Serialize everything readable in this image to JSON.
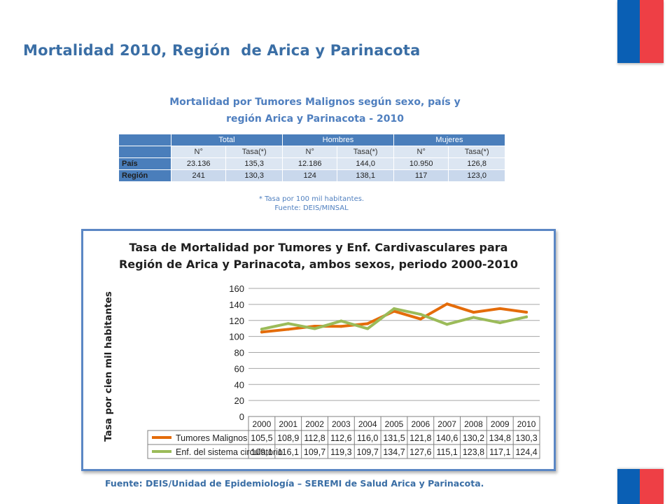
{
  "slide": {
    "title": "Mortalidad 2010, Región  de Arica y Parinacota",
    "footer_source": "Fuente: DEIS/Unidad de Epidemiología – SEREMI de Salud Arica y Parinacota."
  },
  "colors": {
    "title": "#3a6ea5",
    "flag_blue": "#0a5fb4",
    "flag_red": "#ee3f45",
    "series_1": "#e46c0a",
    "series_2": "#9bbb59"
  },
  "table": {
    "title_line1": "Mortalidad por Tumores Malignos  según sexo, país y",
    "title_line2": "región Arica y Parinacota - 2010",
    "groups": [
      "Total",
      "Hombres",
      "Mujeres"
    ],
    "subheaders": [
      "N°",
      "Tasa(*)",
      "N°",
      "Tasa(*)",
      "N°",
      "Tasa(*)"
    ],
    "rows": [
      {
        "label": "País",
        "cells": [
          "23.136",
          "135,3",
          "12.186",
          "144,0",
          "10.950",
          "126,8"
        ]
      },
      {
        "label": "Región",
        "cells": [
          "241",
          "130,3",
          "124",
          "138,1",
          "117",
          "123,0"
        ]
      }
    ],
    "note_line1": "* Tasa por 100 mil habitantes.",
    "note_line2": "Fuente: DEIS/MINSAL"
  },
  "chart_data": {
    "type": "line",
    "title_line1": "Tasa de Mortalidad por Tumores y Enf. Cardivasculares para",
    "title_line2": "Región de Arica y Parinacota,  ambos sexos, periodo 2000-2010",
    "ylabel": "Tasa  por cien  mil habitantes",
    "xlabel": "",
    "ylim": [
      0,
      160
    ],
    "yticks": [
      0,
      20,
      40,
      60,
      80,
      100,
      120,
      140,
      160
    ],
    "grid": true,
    "legend": "data-table-below",
    "categories": [
      "2000",
      "2001",
      "2002",
      "2003",
      "2004",
      "2005",
      "2006",
      "2007",
      "2008",
      "2009",
      "2010"
    ],
    "series": [
      {
        "name": "Tumores Malignos",
        "values": [
          105.5,
          108.9,
          112.8,
          112.6,
          116.0,
          131.5,
          121.8,
          140.6,
          130.2,
          134.8,
          130.3
        ],
        "labels": [
          "105,5",
          "108,9",
          "112,8",
          "112,6",
          "116,0",
          "131,5",
          "121,8",
          "140,6",
          "130,2",
          "134,8",
          "130,3"
        ],
        "color": "#e46c0a"
      },
      {
        "name": "Enf. del sistema circulatorio",
        "values": [
          109.1,
          116.1,
          109.7,
          119.3,
          109.7,
          134.7,
          127.6,
          115.1,
          123.8,
          117.1,
          124.4
        ],
        "labels": [
          "109,1",
          "116,1",
          "109,7",
          "119,3",
          "109,7",
          "134,7",
          "127,6",
          "115,1",
          "123,8",
          "117,1",
          "124,4"
        ],
        "color": "#9bbb59"
      }
    ]
  }
}
